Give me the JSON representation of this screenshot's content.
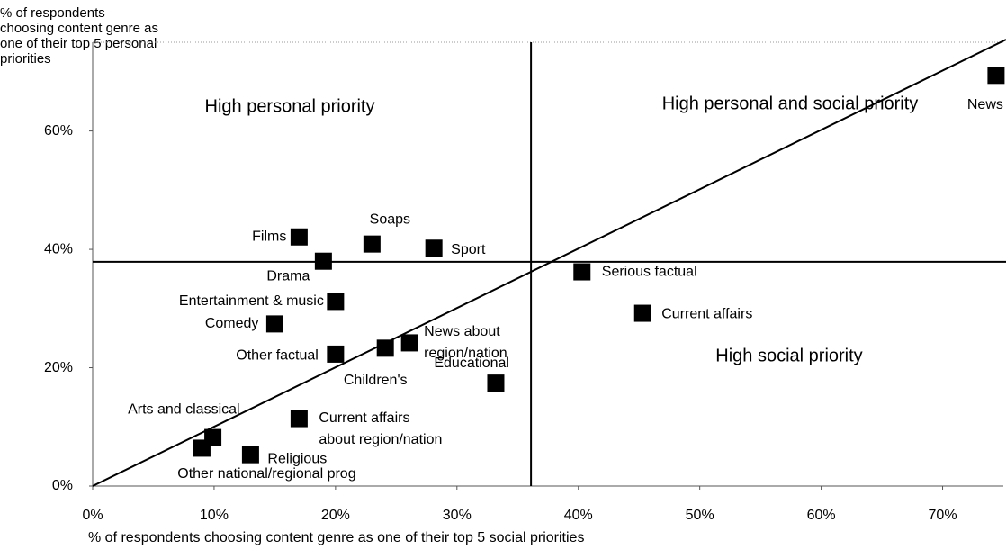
{
  "chart_data": {
    "type": "scatter",
    "x_label": "% of respondents choosing content genre as one of their top 5 social priorities",
    "y_label": "% of respondents choosing content genre as one of their top 5 personal priorities",
    "annotations": [
      "High personal priority",
      "High personal and social priority",
      "High social priority"
    ],
    "labels": [
      "Films",
      "Soaps",
      "Sport",
      "Drama",
      "Serious factual",
      "Entertainment & music",
      "Current affairs",
      "Comedy",
      "News about region/nation",
      "Children's",
      "Other factual",
      "Educational",
      "Current affairs about region/nation",
      "Arts and classical",
      "Other national/regional prog",
      "Religious",
      "News"
    ],
    "x": [
      17.0,
      23.0,
      28.1,
      19.0,
      40.3,
      20.0,
      45.3,
      15.0,
      26.1,
      24.1,
      20.0,
      33.2,
      17.0,
      9.9,
      9.0,
      13.0,
      74.4
    ],
    "values": [
      42.1,
      40.9,
      40.2,
      38.0,
      36.2,
      31.2,
      29.2,
      27.4,
      24.2,
      23.3,
      22.3,
      17.4,
      11.4,
      8.2,
      6.4,
      5.3,
      69.4
    ],
    "color": "#000000",
    "reference_lines": {
      "x": 36.1,
      "y": 37.9
    },
    "diagonal": true,
    "xlim": [
      0,
      75
    ],
    "ylim": [
      0,
      75
    ],
    "xticks": [
      {
        "value": 0,
        "label": "0%"
      },
      {
        "value": 10,
        "label": "10%"
      },
      {
        "value": 20,
        "label": "20%"
      },
      {
        "value": 30,
        "label": "30%"
      },
      {
        "value": 40,
        "label": "40%"
      },
      {
        "value": 50,
        "label": "50%"
      },
      {
        "value": 60,
        "label": "60%"
      },
      {
        "value": 70,
        "label": "70%"
      }
    ],
    "yticks": [
      {
        "value": 0,
        "label": "0%"
      },
      {
        "value": 20,
        "label": "20%"
      },
      {
        "value": 40,
        "label": "40%"
      },
      {
        "value": 60,
        "label": "60%"
      }
    ]
  }
}
